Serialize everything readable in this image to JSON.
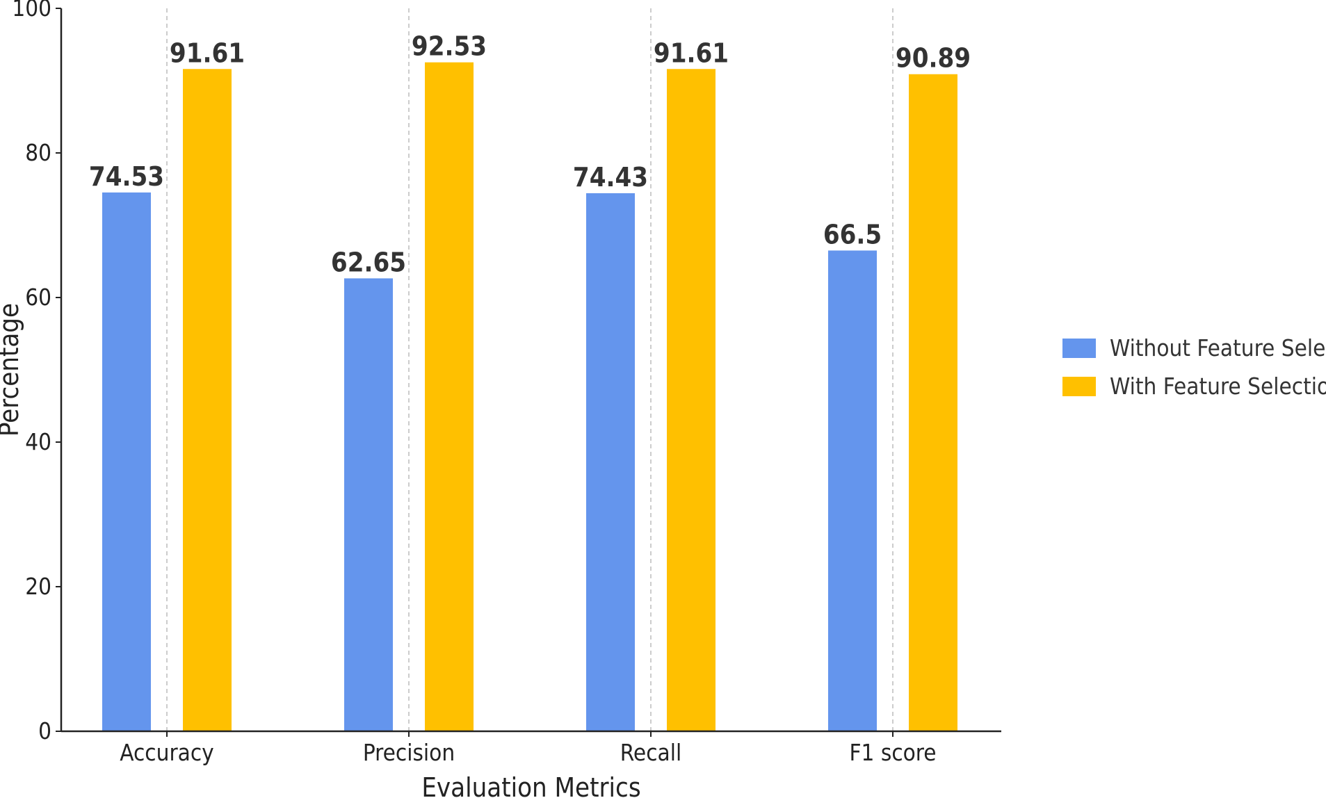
{
  "chart_data": {
    "type": "bar",
    "title": "",
    "xlabel": "Evaluation Metrics",
    "ylabel": "Percentage",
    "categories": [
      "Accuracy",
      "Precision",
      "Recall",
      "F1 score"
    ],
    "series": [
      {
        "name": "Without Feature Selection",
        "values": [
          74.53,
          62.65,
          74.43,
          66.5
        ],
        "color": "#6495ED"
      },
      {
        "name": "With Feature Selection",
        "values": [
          91.61,
          92.53,
          91.61,
          90.89
        ],
        "color": "#FFC000"
      }
    ],
    "ylim": [
      0,
      100
    ],
    "yticks": [
      "0",
      "20",
      "40",
      "60",
      "80",
      "100"
    ],
    "grid": "vertical dashed lines at categories",
    "legend_position": "right"
  }
}
